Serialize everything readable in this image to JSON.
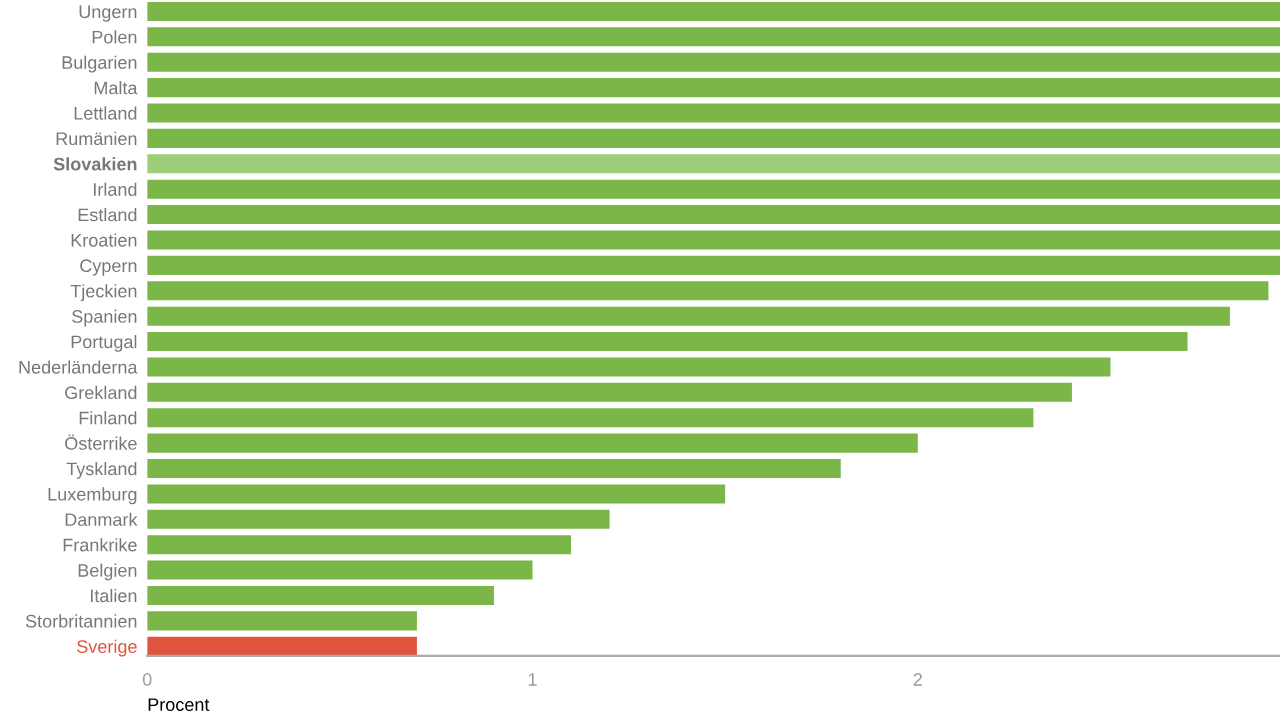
{
  "chart_data": {
    "type": "bar",
    "orientation": "horizontal",
    "xlabel": "Procent",
    "categories": [
      "Ungern",
      "Polen",
      "Bulgarien",
      "Malta",
      "Lettland",
      "Rumänien",
      "Slovakien",
      "Irland",
      "Estland",
      "Kroatien",
      "Cypern",
      "Tjeckien",
      "Spanien",
      "Portugal",
      "Nederländerna",
      "Grekland",
      "Finland",
      "Österrike",
      "Tyskland",
      "Luxemburg",
      "Danmark",
      "Frankrike",
      "Belgien",
      "Italien",
      "Storbritannien",
      "Sverige"
    ],
    "values": [
      2.94,
      2.94,
      2.94,
      2.94,
      2.94,
      2.94,
      2.94,
      2.94,
      2.94,
      2.94,
      2.94,
      2.91,
      2.81,
      2.7,
      2.5,
      2.4,
      2.3,
      2.0,
      1.8,
      1.5,
      1.2,
      1.1,
      1.0,
      0.9,
      0.7,
      0.7
    ],
    "colors": [
      "#7ab648",
      "#7ab648",
      "#7ab648",
      "#7ab648",
      "#7ab648",
      "#7ab648",
      "#9dcd78",
      "#7ab648",
      "#7ab648",
      "#7ab648",
      "#7ab648",
      "#7ab648",
      "#7ab648",
      "#7ab648",
      "#7ab648",
      "#7ab648",
      "#7ab648",
      "#7ab648",
      "#7ab648",
      "#7ab648",
      "#7ab648",
      "#7ab648",
      "#7ab648",
      "#7ab648",
      "#7ab648",
      "#e0533c"
    ],
    "xlim": [
      0,
      2.94
    ],
    "xticks": [
      0,
      1,
      2
    ],
    "grid": false
  }
}
